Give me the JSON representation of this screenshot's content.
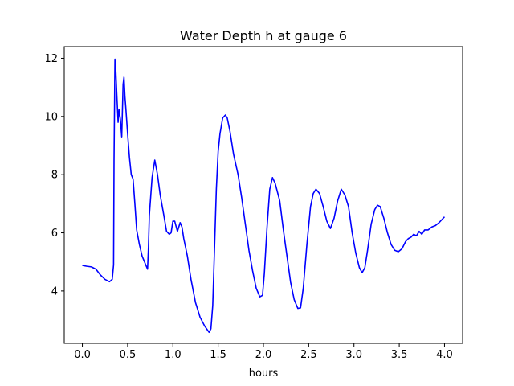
{
  "chart_data": {
    "type": "line",
    "title": "Water Depth h at gauge 6",
    "xlabel": "hours",
    "ylabel": "",
    "xlim": [
      -0.2,
      4.2
    ],
    "ylim": [
      2.2,
      12.4
    ],
    "xticks": [
      0.0,
      0.5,
      1.0,
      1.5,
      2.0,
      2.5,
      3.0,
      3.5,
      4.0
    ],
    "xtick_labels": [
      "0.0",
      "0.5",
      "1.0",
      "1.5",
      "2.0",
      "2.5",
      "3.0",
      "3.5",
      "4.0"
    ],
    "yticks": [
      4,
      6,
      8,
      10,
      12
    ],
    "ytick_labels": [
      "4",
      "6",
      "8",
      "10",
      "12"
    ],
    "grid": false,
    "series": [
      {
        "color": "#0000ff",
        "points": [
          [
            0.0,
            4.88
          ],
          [
            0.05,
            4.85
          ],
          [
            0.1,
            4.83
          ],
          [
            0.15,
            4.75
          ],
          [
            0.2,
            4.55
          ],
          [
            0.25,
            4.4
          ],
          [
            0.3,
            4.32
          ],
          [
            0.33,
            4.4
          ],
          [
            0.345,
            4.9
          ],
          [
            0.35,
            8.5
          ],
          [
            0.36,
            11.97
          ],
          [
            0.365,
            11.9
          ],
          [
            0.38,
            10.8
          ],
          [
            0.395,
            9.8
          ],
          [
            0.405,
            10.25
          ],
          [
            0.42,
            9.9
          ],
          [
            0.435,
            9.3
          ],
          [
            0.45,
            11.1
          ],
          [
            0.46,
            11.35
          ],
          [
            0.47,
            10.7
          ],
          [
            0.48,
            10.3
          ],
          [
            0.5,
            9.4
          ],
          [
            0.52,
            8.6
          ],
          [
            0.54,
            8.0
          ],
          [
            0.56,
            7.85
          ],
          [
            0.58,
            7.0
          ],
          [
            0.6,
            6.1
          ],
          [
            0.63,
            5.6
          ],
          [
            0.66,
            5.2
          ],
          [
            0.7,
            4.9
          ],
          [
            0.72,
            4.75
          ],
          [
            0.73,
            5.5
          ],
          [
            0.74,
            6.6
          ],
          [
            0.77,
            7.9
          ],
          [
            0.8,
            8.5
          ],
          [
            0.83,
            8.0
          ],
          [
            0.86,
            7.3
          ],
          [
            0.9,
            6.6
          ],
          [
            0.93,
            6.05
          ],
          [
            0.96,
            5.95
          ],
          [
            0.98,
            6.0
          ],
          [
            1.0,
            6.4
          ],
          [
            1.02,
            6.4
          ],
          [
            1.05,
            6.05
          ],
          [
            1.08,
            6.35
          ],
          [
            1.1,
            6.2
          ],
          [
            1.12,
            5.8
          ],
          [
            1.16,
            5.2
          ],
          [
            1.2,
            4.4
          ],
          [
            1.25,
            3.6
          ],
          [
            1.3,
            3.1
          ],
          [
            1.35,
            2.8
          ],
          [
            1.4,
            2.58
          ],
          [
            1.42,
            2.7
          ],
          [
            1.44,
            3.5
          ],
          [
            1.46,
            5.5
          ],
          [
            1.48,
            7.5
          ],
          [
            1.5,
            8.8
          ],
          [
            1.52,
            9.4
          ],
          [
            1.55,
            9.95
          ],
          [
            1.58,
            10.05
          ],
          [
            1.6,
            9.95
          ],
          [
            1.63,
            9.5
          ],
          [
            1.67,
            8.7
          ],
          [
            1.72,
            8.0
          ],
          [
            1.76,
            7.2
          ],
          [
            1.8,
            6.3
          ],
          [
            1.84,
            5.4
          ],
          [
            1.88,
            4.7
          ],
          [
            1.92,
            4.1
          ],
          [
            1.96,
            3.8
          ],
          [
            1.99,
            3.85
          ],
          [
            2.01,
            4.6
          ],
          [
            2.04,
            6.2
          ],
          [
            2.07,
            7.5
          ],
          [
            2.1,
            7.9
          ],
          [
            2.13,
            7.7
          ],
          [
            2.18,
            7.1
          ],
          [
            2.22,
            6.1
          ],
          [
            2.26,
            5.2
          ],
          [
            2.3,
            4.3
          ],
          [
            2.34,
            3.7
          ],
          [
            2.38,
            3.4
          ],
          [
            2.41,
            3.42
          ],
          [
            2.44,
            4.1
          ],
          [
            2.48,
            5.6
          ],
          [
            2.52,
            6.9
          ],
          [
            2.55,
            7.35
          ],
          [
            2.58,
            7.5
          ],
          [
            2.62,
            7.35
          ],
          [
            2.66,
            6.9
          ],
          [
            2.7,
            6.4
          ],
          [
            2.74,
            6.15
          ],
          [
            2.78,
            6.5
          ],
          [
            2.82,
            7.1
          ],
          [
            2.86,
            7.5
          ],
          [
            2.9,
            7.3
          ],
          [
            2.94,
            6.9
          ],
          [
            2.98,
            6.0
          ],
          [
            3.02,
            5.3
          ],
          [
            3.06,
            4.8
          ],
          [
            3.09,
            4.63
          ],
          [
            3.12,
            4.8
          ],
          [
            3.15,
            5.4
          ],
          [
            3.19,
            6.3
          ],
          [
            3.23,
            6.8
          ],
          [
            3.26,
            6.95
          ],
          [
            3.29,
            6.9
          ],
          [
            3.33,
            6.5
          ],
          [
            3.37,
            6.0
          ],
          [
            3.41,
            5.6
          ],
          [
            3.45,
            5.4
          ],
          [
            3.49,
            5.35
          ],
          [
            3.53,
            5.45
          ],
          [
            3.57,
            5.7
          ],
          [
            3.6,
            5.8
          ],
          [
            3.63,
            5.85
          ],
          [
            3.66,
            5.95
          ],
          [
            3.69,
            5.9
          ],
          [
            3.72,
            6.05
          ],
          [
            3.75,
            5.95
          ],
          [
            3.78,
            6.1
          ],
          [
            3.82,
            6.1
          ],
          [
            3.86,
            6.2
          ],
          [
            3.9,
            6.25
          ],
          [
            3.94,
            6.35
          ],
          [
            3.97,
            6.45
          ],
          [
            4.0,
            6.55
          ]
        ]
      }
    ]
  }
}
